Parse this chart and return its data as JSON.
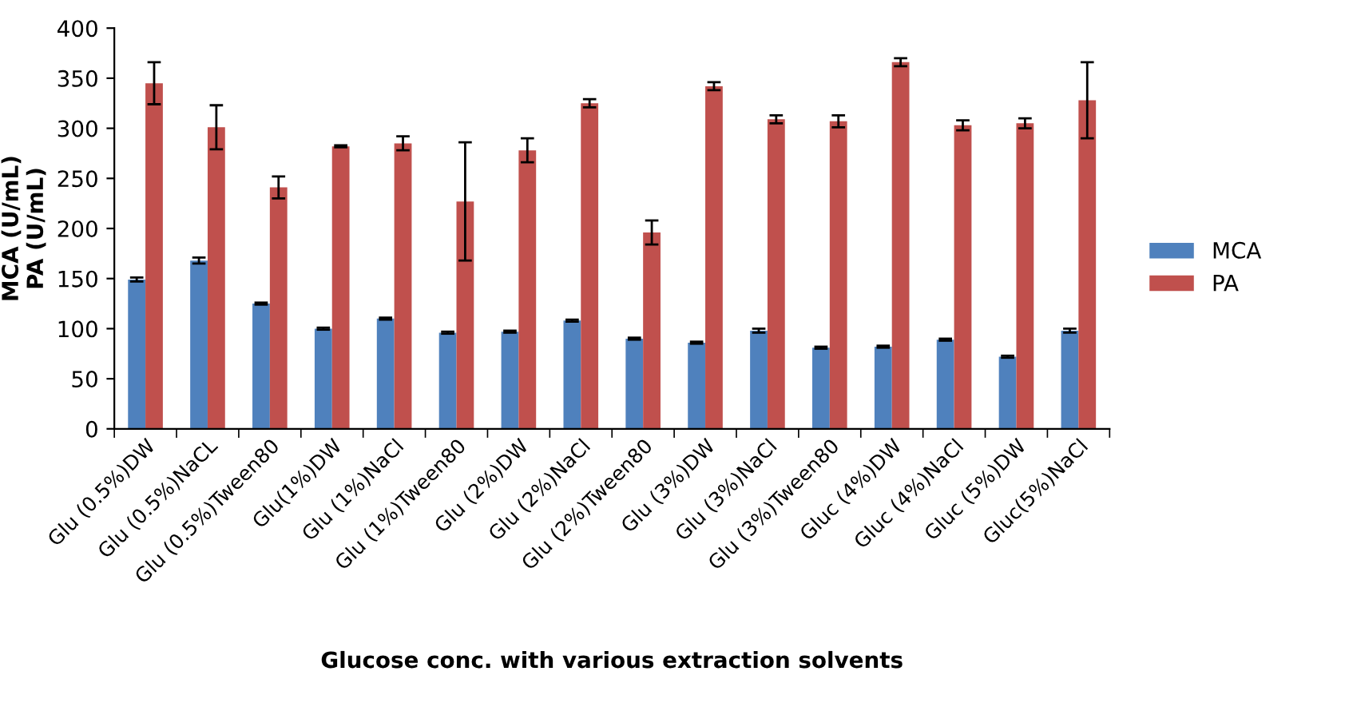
{
  "chart_data": {
    "type": "bar",
    "xlabel": "Glucose conc. with various extraction solvents",
    "ylabel": "MCA (U/mL)\nPA (U/mL)",
    "categories": [
      "Glu (0.5%)DW",
      "Glu (0.5%)NaCL",
      "Glu (0.5%)Tween80",
      "Glu(1%)DW",
      "Glu (1%)NaCl",
      "Glu (1%)Tween80",
      "Glu (2%)DW",
      "Glu (2%)NaCl",
      "Glu (2%)Tween80",
      "Glu (3%)DW",
      "Glu (3%)NaCl",
      "Glu (3%)Tween80",
      "Gluc (4%)DW",
      "Gluc (4%)NaCl",
      "Gluc (5%)DW",
      "Gluc(5%)NaCl"
    ],
    "series": [
      {
        "name": "MCA",
        "color": "#4f81bd",
        "values": [
          149,
          168,
          125,
          100,
          110,
          96,
          97,
          108,
          90,
          86,
          98,
          81,
          82,
          89,
          72,
          98
        ],
        "errors": [
          2,
          3,
          1,
          1,
          1,
          1,
          1,
          1,
          1,
          1,
          2,
          1,
          1,
          1,
          1,
          2
        ]
      },
      {
        "name": "PA",
        "color": "#c0504d",
        "values": [
          345,
          301,
          241,
          282,
          285,
          227,
          278,
          325,
          196,
          342,
          309,
          307,
          366,
          303,
          305,
          328
        ],
        "errors": [
          21,
          22,
          11,
          1,
          7,
          59,
          12,
          4,
          12,
          4,
          4,
          6,
          4,
          5,
          5,
          38
        ]
      }
    ],
    "ylim": [
      0,
      400
    ],
    "yticks": [
      0,
      50,
      100,
      150,
      200,
      250,
      300,
      350,
      400
    ],
    "grid": false,
    "legend": "right"
  }
}
